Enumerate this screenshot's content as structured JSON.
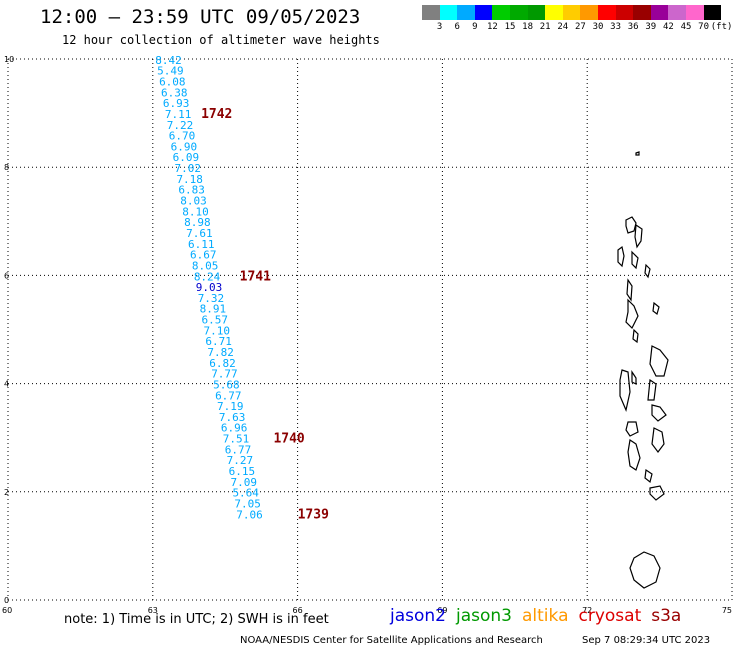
{
  "header": {
    "title": "12:00 – 23:59 UTC 09/05/2023",
    "subtitle": "12 hour collection of altimeter wave heights"
  },
  "legend": {
    "unit": "(ft)",
    "labels": [
      "3",
      "6",
      "9",
      "12",
      "15",
      "18",
      "21",
      "24",
      "27",
      "30",
      "33",
      "36",
      "39",
      "42",
      "45",
      "70"
    ],
    "colors": [
      "#808080",
      "#00ffff",
      "#00aaff",
      "#0000ff",
      "#00cc00",
      "#00aa00",
      "#009900",
      "#ffff00",
      "#ffcc00",
      "#ff9900",
      "#ff0000",
      "#cc0000",
      "#990000",
      "#990099",
      "#cc66cc",
      "#ff66cc",
      "#000000"
    ]
  },
  "chart_data": {
    "type": "scatter",
    "xlim": [
      60,
      75
    ],
    "ylim": [
      0,
      10
    ],
    "x_ticks": [
      "60",
      "63",
      "66",
      "69",
      "72",
      "75"
    ],
    "y_ticks": [
      "0",
      "2",
      "4",
      "6",
      "8",
      "10"
    ],
    "grid": true,
    "points": [
      {
        "x": 63.05,
        "y": 9.91,
        "v": "8.42"
      },
      {
        "x": 63.09,
        "y": 9.71,
        "v": "5.49"
      },
      {
        "x": 63.13,
        "y": 9.51,
        "v": "6.08"
      },
      {
        "x": 63.17,
        "y": 9.31,
        "v": "6.38"
      },
      {
        "x": 63.21,
        "y": 9.11,
        "v": "6.93"
      },
      {
        "x": 63.25,
        "y": 8.91,
        "v": "7.11"
      },
      {
        "x": 63.29,
        "y": 8.71,
        "v": "7.22"
      },
      {
        "x": 63.33,
        "y": 8.51,
        "v": "6.70"
      },
      {
        "x": 63.37,
        "y": 8.31,
        "v": "6.90"
      },
      {
        "x": 63.41,
        "y": 8.11,
        "v": "6.09"
      },
      {
        "x": 63.45,
        "y": 7.91,
        "v": "7.02"
      },
      {
        "x": 63.49,
        "y": 7.71,
        "v": "7.18"
      },
      {
        "x": 63.53,
        "y": 7.51,
        "v": "6.83"
      },
      {
        "x": 63.57,
        "y": 7.31,
        "v": "8.03"
      },
      {
        "x": 63.61,
        "y": 7.11,
        "v": "8.10"
      },
      {
        "x": 63.65,
        "y": 6.91,
        "v": "8.98"
      },
      {
        "x": 63.69,
        "y": 6.71,
        "v": "7.61"
      },
      {
        "x": 63.73,
        "y": 6.51,
        "v": "6.11"
      },
      {
        "x": 63.77,
        "y": 6.31,
        "v": "6.67"
      },
      {
        "x": 63.81,
        "y": 6.11,
        "v": "8.05"
      },
      {
        "x": 63.85,
        "y": 5.91,
        "v": "8.24"
      },
      {
        "x": 63.89,
        "y": 5.71,
        "v": "9.03",
        "c": "#0000cc"
      },
      {
        "x": 63.93,
        "y": 5.51,
        "v": "7.32"
      },
      {
        "x": 63.97,
        "y": 5.31,
        "v": "8.91"
      },
      {
        "x": 64.01,
        "y": 5.11,
        "v": "6.57"
      },
      {
        "x": 64.05,
        "y": 4.91,
        "v": "7.10"
      },
      {
        "x": 64.09,
        "y": 4.71,
        "v": "6.71"
      },
      {
        "x": 64.13,
        "y": 4.51,
        "v": "7.82"
      },
      {
        "x": 64.17,
        "y": 4.31,
        "v": "6.82"
      },
      {
        "x": 64.21,
        "y": 4.11,
        "v": "7.77"
      },
      {
        "x": 64.25,
        "y": 3.91,
        "v": "5.68"
      },
      {
        "x": 64.29,
        "y": 3.71,
        "v": "6.77"
      },
      {
        "x": 64.33,
        "y": 3.51,
        "v": "7.19"
      },
      {
        "x": 64.37,
        "y": 3.31,
        "v": "7.63"
      },
      {
        "x": 64.41,
        "y": 3.11,
        "v": "6.96"
      },
      {
        "x": 64.45,
        "y": 2.91,
        "v": "7.51"
      },
      {
        "x": 64.49,
        "y": 2.71,
        "v": "6.77"
      },
      {
        "x": 64.53,
        "y": 2.51,
        "v": "7.27"
      },
      {
        "x": 64.57,
        "y": 2.31,
        "v": "6.15"
      },
      {
        "x": 64.61,
        "y": 2.11,
        "v": "7.09"
      },
      {
        "x": 64.65,
        "y": 1.91,
        "v": "5.64"
      },
      {
        "x": 64.69,
        "y": 1.71,
        "v": "7.05"
      },
      {
        "x": 64.73,
        "y": 1.51,
        "v": "7.06"
      }
    ],
    "pass_labels": [
      {
        "text": "1742",
        "x": 64.0,
        "y": 8.91
      },
      {
        "text": "1741",
        "x": 64.8,
        "y": 5.91
      },
      {
        "text": "1740",
        "x": 65.5,
        "y": 2.91
      },
      {
        "text": "1739",
        "x": 66.0,
        "y": 1.51
      }
    ]
  },
  "footer": {
    "note": "note:  1) Time is in UTC;  2) SWH is in feet",
    "satellites": [
      {
        "name": "jason2",
        "color": "#0000dd"
      },
      {
        "name": "jason3",
        "color": "#009900"
      },
      {
        "name": "altika",
        "color": "#ff9900"
      },
      {
        "name": "cryosat",
        "color": "#dd0000"
      },
      {
        "name": "s3a",
        "color": "#990000"
      }
    ],
    "credit": "NOAA/NESDIS Center for Satellite Applications and Research",
    "date": "Sep  7 08:29:34 UTC 2023"
  }
}
